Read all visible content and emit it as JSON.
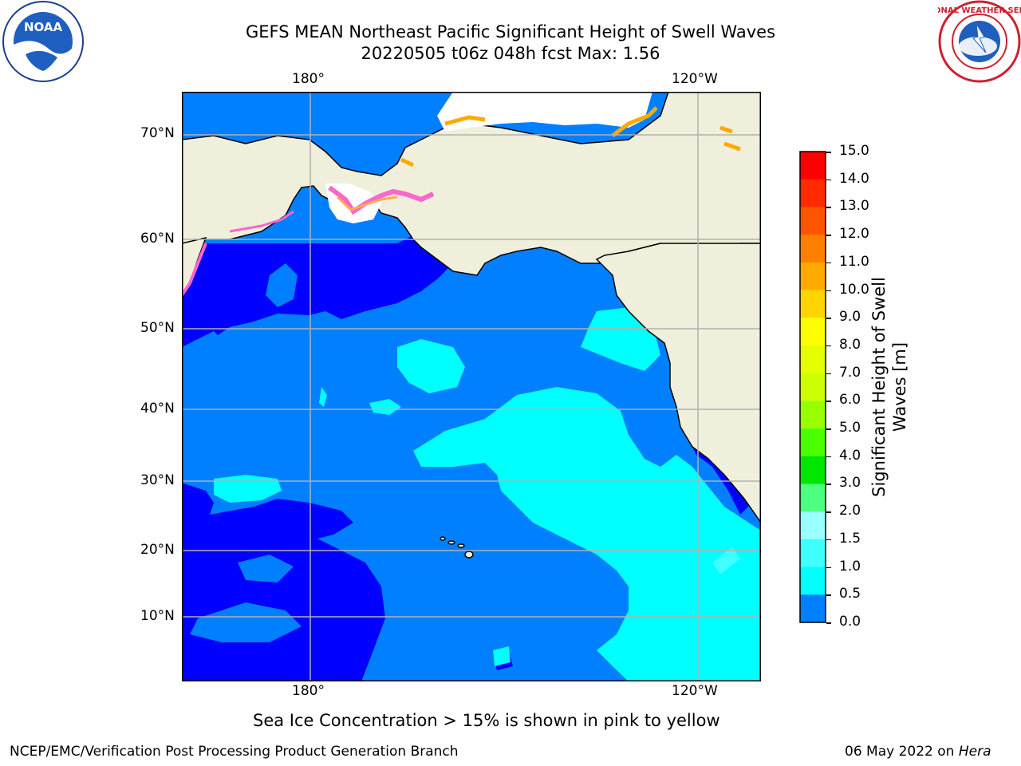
{
  "header": {
    "title_line1": "GEFS MEAN Northeast Pacific Significant Height of Swell Waves",
    "title_line2": "20220505 t06z 048h fcst   Max: 1.56"
  },
  "logos": {
    "left": "noaa-logo",
    "left_text": "NOAA",
    "right": "nws-logo",
    "right_text": "NATIONAL WEATHER SERVICE"
  },
  "map": {
    "lon_labels_top": [
      "180°",
      "120°W"
    ],
    "lon_labels_bottom": [
      "180°",
      "120°W"
    ],
    "lat_labels": [
      "70°N",
      "60°N",
      "50°N",
      "40°N",
      "30°N",
      "20°N",
      "10°N"
    ],
    "colors": {
      "ocean_0_0_5": "#0000ff",
      "ocean_0_5_1_0": "#0080ff",
      "ocean_1_0_1_5": "#00ffff",
      "ocean_1_5_2_0": "#40ffff",
      "land": "#efefdc",
      "sea_ice": "#ff66cc"
    }
  },
  "colorbar": {
    "label": "Significant Height of Swell Waves [m]",
    "ticks": [
      "15.0",
      "14.0",
      "13.0",
      "12.0",
      "11.0",
      "10.0",
      "9.0",
      "8.0",
      "7.0",
      "6.0",
      "5.0",
      "4.0",
      "3.0",
      "2.0",
      "1.5",
      "1.0",
      "0.5",
      "0.0"
    ],
    "colors": [
      "#ff0000",
      "#ff2a00",
      "#ff5400",
      "#ff7f00",
      "#ffaa00",
      "#ffd400",
      "#ffff00",
      "#e5ff00",
      "#ccff00",
      "#99ff00",
      "#4cff00",
      "#00e600",
      "#4dff80",
      "#99ffff",
      "#40ffff",
      "#00ffff",
      "#0080ff",
      "#0000ff"
    ]
  },
  "note": "Sea Ice Concentration > 15% is shown in pink to yellow",
  "footer": {
    "left": "NCEP/EMC/Verification Post Processing Product Generation Branch",
    "right_date": "06 May 2022 on ",
    "right_host": "Hera"
  }
}
